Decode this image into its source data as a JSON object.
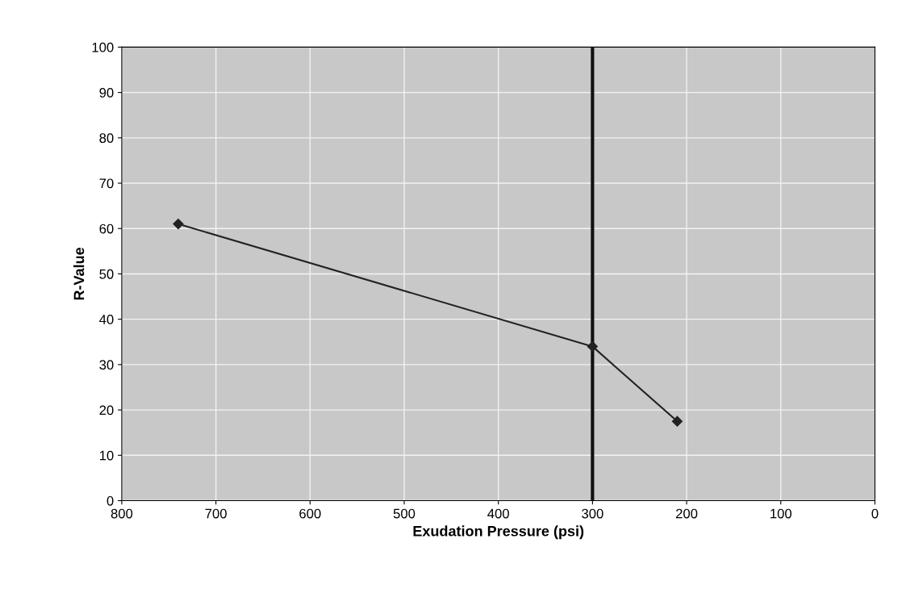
{
  "chart_data": {
    "type": "line",
    "xlabel": "Exudation Pressure (psi)",
    "ylabel": "R-Value",
    "x": [
      740,
      300,
      210
    ],
    "series": [
      {
        "color": "#222222",
        "values": [
          61,
          34,
          17.5
        ]
      }
    ],
    "xlim": [
      800,
      0
    ],
    "xticks": [
      800,
      700,
      600,
      500,
      400,
      300,
      200,
      100,
      0
    ],
    "ylim": [
      0,
      100
    ],
    "yticks": [
      0,
      10,
      20,
      30,
      40,
      50,
      60,
      70,
      80,
      90,
      100
    ],
    "ref_lines": [
      {
        "axis": "x",
        "value": 300,
        "color": "#111111",
        "line_style": "solid"
      }
    ],
    "grid": true,
    "marker": "diamond",
    "line_style": "solid"
  }
}
